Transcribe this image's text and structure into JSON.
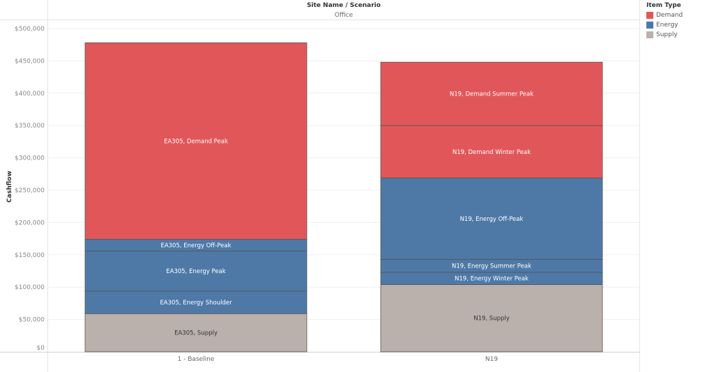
{
  "header": {
    "title": "Site Name / Scenario",
    "subtitle": "Office"
  },
  "legend": {
    "title": "Item Type",
    "items": [
      {
        "label": "Demand",
        "color": "#e15759"
      },
      {
        "label": "Energy",
        "color": "#4e79a7"
      },
      {
        "label": "Supply",
        "color": "#bab0ac"
      }
    ]
  },
  "chart_data": {
    "type": "bar",
    "stacked": true,
    "title": "",
    "xlabel": "",
    "ylabel": "Cashflow",
    "ylim": [
      0,
      500000
    ],
    "yticks": [
      "$0",
      "$50,000",
      "$100,000",
      "$150,000",
      "$200,000",
      "$250,000",
      "$300,000",
      "$350,000",
      "$400,000",
      "$450,000",
      "$500,000"
    ],
    "grid": true,
    "legend_position": "right",
    "categories": [
      "1 - Baseline",
      "N19"
    ],
    "stacks": [
      {
        "category": "1 - Baseline",
        "segments": [
          {
            "label": "EA305, Supply",
            "type": "Supply",
            "value": 59000
          },
          {
            "label": "EA305, Energy Shoulder",
            "type": "Energy",
            "value": 35000
          },
          {
            "label": "EA305, Energy Peak",
            "type": "Energy",
            "value": 62000
          },
          {
            "label": "EA305, Energy Off-Peak",
            "type": "Energy",
            "value": 18000
          },
          {
            "label": "EA305, Demand Peak",
            "type": "Demand",
            "value": 304000
          }
        ]
      },
      {
        "category": "N19",
        "segments": [
          {
            "label": "N19, Supply",
            "type": "Supply",
            "value": 104000
          },
          {
            "label": "N19, Energy Winter Peak",
            "type": "Energy",
            "value": 19000
          },
          {
            "label": "N19, Energy Summer Peak",
            "type": "Energy",
            "value": 20000
          },
          {
            "label": "N19, Energy Off-Peak",
            "type": "Energy",
            "value": 126000
          },
          {
            "label": "N19, Demand Winter Peak",
            "type": "Demand",
            "value": 81000
          },
          {
            "label": "N19, Demand Summer Peak",
            "type": "Demand",
            "value": 98000
          }
        ]
      }
    ]
  }
}
